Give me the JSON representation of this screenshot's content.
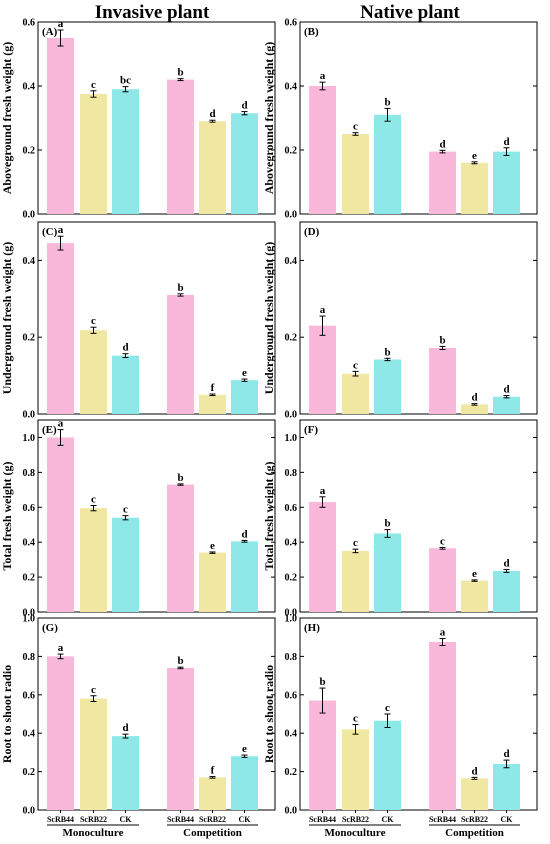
{
  "columns": [
    "Invasive plant",
    "Native plant"
  ],
  "categories": [
    "ScRB44",
    "ScRB22",
    "CK"
  ],
  "groups": [
    "Monoculture",
    "Competition"
  ],
  "colors": {
    "ScRB44": "#f9b8da",
    "ScRB22": "#f0e7a3",
    "CK": "#8fe8e8"
  },
  "chart_data": [
    {
      "type": "bar",
      "panel": "(A)",
      "ylabel": "Aboveground fresh weight (g)",
      "ylim": [
        0,
        0.6
      ],
      "yticks": [
        0.0,
        0.2,
        0.4,
        0.6
      ],
      "groups": [
        "Monoculture",
        "Competition"
      ],
      "categories": [
        "ScRB44",
        "ScRB22",
        "CK"
      ],
      "series": [
        {
          "group": "Monoculture",
          "values": [
            0.55,
            0.375,
            0.39
          ],
          "errors": [
            0.025,
            0.01,
            0.008
          ],
          "letters": [
            "a",
            "c",
            "bc"
          ]
        },
        {
          "group": "Competition",
          "values": [
            0.42,
            0.29,
            0.315
          ],
          "errors": [
            0.003,
            0.003,
            0.005
          ],
          "letters": [
            "b",
            "d",
            "d"
          ]
        }
      ]
    },
    {
      "type": "bar",
      "panel": "(B)",
      "ylabel": "Aboveground fresh weight (g)",
      "ylim": [
        0,
        0.6
      ],
      "yticks": [
        0.0,
        0.2,
        0.4,
        0.6
      ],
      "groups": [
        "Monoculture",
        "Competition"
      ],
      "categories": [
        "ScRB44",
        "ScRB22",
        "CK"
      ],
      "series": [
        {
          "group": "Monoculture",
          "values": [
            0.4,
            0.25,
            0.31
          ],
          "errors": [
            0.012,
            0.004,
            0.02
          ],
          "letters": [
            "a",
            "c",
            "b"
          ]
        },
        {
          "group": "Competition",
          "values": [
            0.195,
            0.16,
            0.195
          ],
          "errors": [
            0.004,
            0.003,
            0.012
          ],
          "letters": [
            "d",
            "e",
            "d"
          ]
        }
      ]
    },
    {
      "type": "bar",
      "panel": "(C)",
      "ylabel": "Underground fresh weight (g)",
      "ylim": [
        0,
        0.5
      ],
      "yticks": [
        0.0,
        0.2,
        0.4
      ],
      "groups": [
        "Monoculture",
        "Competition"
      ],
      "categories": [
        "ScRB44",
        "ScRB22",
        "CK"
      ],
      "series": [
        {
          "group": "Monoculture",
          "values": [
            0.445,
            0.218,
            0.152
          ],
          "errors": [
            0.018,
            0.008,
            0.005
          ],
          "letters": [
            "a",
            "c",
            "d"
          ]
        },
        {
          "group": "Competition",
          "values": [
            0.31,
            0.05,
            0.088
          ],
          "errors": [
            0.003,
            0.002,
            0.003
          ],
          "letters": [
            "b",
            "f",
            "e"
          ]
        }
      ]
    },
    {
      "type": "bar",
      "panel": "(D)",
      "ylabel": "Underground fresh weight (g)",
      "ylim": [
        0,
        0.5
      ],
      "yticks": [
        0.0,
        0.2,
        0.4
      ],
      "groups": [
        "Monoculture",
        "Competition"
      ],
      "categories": [
        "ScRB44",
        "ScRB22",
        "CK"
      ],
      "series": [
        {
          "group": "Monoculture",
          "values": [
            0.23,
            0.105,
            0.142
          ],
          "errors": [
            0.025,
            0.006,
            0.003
          ],
          "letters": [
            "a",
            "c",
            "b"
          ]
        },
        {
          "group": "Competition",
          "values": [
            0.172,
            0.025,
            0.045
          ],
          "errors": [
            0.004,
            0.002,
            0.003
          ],
          "letters": [
            "b",
            "d",
            "d"
          ]
        }
      ]
    },
    {
      "type": "bar",
      "panel": "(E)",
      "ylabel": "Total fresh weight (g)",
      "ylim": [
        0,
        1.1
      ],
      "yticks": [
        0.0,
        0.2,
        0.4,
        0.6,
        0.8,
        1.0
      ],
      "groups": [
        "Monoculture",
        "Competition"
      ],
      "categories": [
        "ScRB44",
        "ScRB22",
        "CK"
      ],
      "series": [
        {
          "group": "Monoculture",
          "values": [
            1.0,
            0.595,
            0.54
          ],
          "errors": [
            0.045,
            0.015,
            0.012
          ],
          "letters": [
            "a",
            "c",
            "c"
          ]
        },
        {
          "group": "Competition",
          "values": [
            0.73,
            0.34,
            0.405
          ],
          "errors": [
            0.004,
            0.004,
            0.005
          ],
          "letters": [
            "b",
            "e",
            "d"
          ]
        }
      ]
    },
    {
      "type": "bar",
      "panel": "(F)",
      "ylabel": "Total fresh weight (g)",
      "ylim": [
        0,
        1.1
      ],
      "yticks": [
        0.0,
        0.2,
        0.4,
        0.6,
        0.8,
        1.0
      ],
      "groups": [
        "Monoculture",
        "Competition"
      ],
      "categories": [
        "ScRB44",
        "ScRB22",
        "CK"
      ],
      "series": [
        {
          "group": "Monoculture",
          "values": [
            0.63,
            0.35,
            0.45
          ],
          "errors": [
            0.03,
            0.01,
            0.022
          ],
          "letters": [
            "a",
            "c",
            "b"
          ]
        },
        {
          "group": "Competition",
          "values": [
            0.365,
            0.18,
            0.235
          ],
          "errors": [
            0.005,
            0.004,
            0.008
          ],
          "letters": [
            "c",
            "e",
            "d"
          ]
        }
      ]
    },
    {
      "type": "bar",
      "panel": "(G)",
      "ylabel": "Root to shoot radio",
      "ylim": [
        0,
        1.0
      ],
      "yticks": [
        0.0,
        0.2,
        0.4,
        0.6,
        0.8,
        1.0
      ],
      "groups": [
        "Monoculture",
        "Competition"
      ],
      "categories": [
        "ScRB44",
        "ScRB22",
        "CK"
      ],
      "series": [
        {
          "group": "Monoculture",
          "values": [
            0.8,
            0.58,
            0.385
          ],
          "errors": [
            0.012,
            0.015,
            0.01
          ],
          "letters": [
            "a",
            "c",
            "d"
          ]
        },
        {
          "group": "Competition",
          "values": [
            0.74,
            0.17,
            0.28
          ],
          "errors": [
            0.004,
            0.004,
            0.006
          ],
          "letters": [
            "b",
            "f",
            "e"
          ]
        }
      ]
    },
    {
      "type": "bar",
      "panel": "(H)",
      "ylabel": "Root to shoot radio",
      "ylim": [
        0,
        1.0
      ],
      "yticks": [
        0.0,
        0.2,
        0.4,
        0.6,
        0.8,
        1.0
      ],
      "groups": [
        "Monoculture",
        "Competition"
      ],
      "categories": [
        "ScRB44",
        "ScRB22",
        "CK"
      ],
      "series": [
        {
          "group": "Monoculture",
          "values": [
            0.57,
            0.42,
            0.465
          ],
          "errors": [
            0.065,
            0.025,
            0.035
          ],
          "letters": [
            "b",
            "c",
            "c"
          ]
        },
        {
          "group": "Competition",
          "values": [
            0.875,
            0.165,
            0.24
          ],
          "errors": [
            0.018,
            0.005,
            0.02
          ],
          "letters": [
            "a",
            "d",
            "d"
          ]
        }
      ]
    }
  ]
}
